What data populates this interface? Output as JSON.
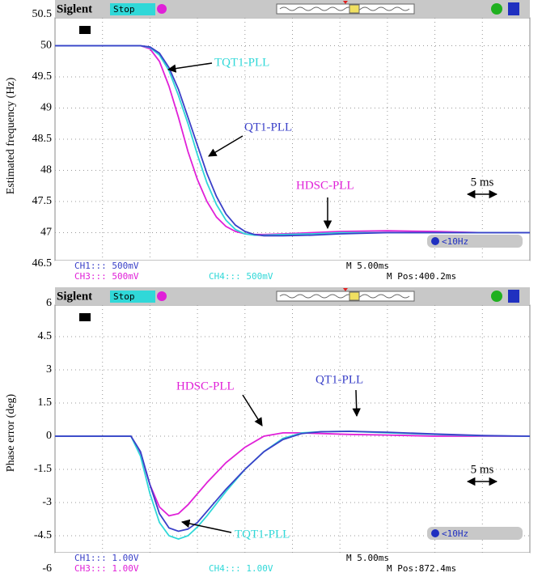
{
  "chart_data": [
    {
      "type": "line",
      "y_label": "Estimated frequency (Hz)",
      "x": [
        0,
        5,
        9,
        10,
        11,
        12,
        13,
        14,
        15,
        16,
        17,
        18,
        19,
        20,
        21,
        22,
        24,
        27,
        30,
        35,
        40,
        45,
        50
      ],
      "xlim": [
        0,
        50
      ],
      "ylim": [
        46.5,
        50.5
      ],
      "yticks": [
        50.5,
        50,
        49.5,
        49,
        48.5,
        48,
        47.5,
        47,
        46.5
      ],
      "series": [
        {
          "name": "HDSC-PLL",
          "color": "#e020d8",
          "values": [
            50,
            50,
            50,
            49.95,
            49.75,
            49.35,
            48.85,
            48.3,
            47.85,
            47.5,
            47.25,
            47.1,
            47.02,
            46.98,
            46.97,
            46.97,
            46.98,
            47.0,
            47.02,
            47.03,
            47.02,
            47.0,
            47.0
          ]
        },
        {
          "name": "TQT1-PLL",
          "color": "#30d8d8",
          "values": [
            50,
            50,
            50,
            49.97,
            49.85,
            49.6,
            49.2,
            48.75,
            48.25,
            47.8,
            47.45,
            47.2,
            47.05,
            46.98,
            46.96,
            46.96,
            46.97,
            46.98,
            47.0,
            47.0,
            47.0,
            47.0,
            47.0
          ]
        },
        {
          "name": "QT1-PLL",
          "color": "#3a40c8",
          "values": [
            50,
            50,
            50,
            49.98,
            49.88,
            49.65,
            49.3,
            48.85,
            48.4,
            47.95,
            47.58,
            47.3,
            47.12,
            47.02,
            46.97,
            46.95,
            46.95,
            46.96,
            46.98,
            47.0,
            47.0,
            47.0,
            47.0
          ]
        }
      ],
      "scope": {
        "brand": "Siglent",
        "status": "Stop",
        "channels": [
          {
            "text": "CH1::: 500mV",
            "color": "#3a40c8"
          },
          {
            "text": "CH3::: 500mV",
            "color": "#e020d8"
          },
          {
            "text": "CH4::: 500mV",
            "color": "#30d8d8"
          }
        ],
        "timebase": "M 5.00ms",
        "position": "M Pos:400.2ms",
        "trigger": "<10Hz",
        "scale_label": "5 ms"
      }
    },
    {
      "type": "line",
      "y_label": "Phase error (deg)",
      "x": [
        0,
        5,
        8,
        9,
        10,
        11,
        12,
        13,
        14,
        15,
        16,
        18,
        20,
        22,
        24,
        26,
        28,
        31,
        35,
        40,
        45,
        50
      ],
      "xlim": [
        0,
        50
      ],
      "ylim": [
        -6,
        6
      ],
      "yticks": [
        6,
        4.5,
        3,
        1.5,
        0,
        -1.5,
        -3,
        -4.5,
        -6
      ],
      "series": [
        {
          "name": "HDSC-PLL",
          "color": "#e020d8",
          "values": [
            0,
            0,
            0,
            -0.8,
            -2.2,
            -3.2,
            -3.6,
            -3.5,
            -3.1,
            -2.6,
            -2.1,
            -1.2,
            -0.5,
            0,
            0.15,
            0.15,
            0.12,
            0.08,
            0.05,
            0,
            0,
            0
          ]
        },
        {
          "name": "TQT1-PLL",
          "color": "#30d8d8",
          "values": [
            0,
            0,
            0,
            -0.9,
            -2.6,
            -3.9,
            -4.5,
            -4.65,
            -4.5,
            -4.1,
            -3.6,
            -2.5,
            -1.5,
            -0.7,
            -0.1,
            0.15,
            0.2,
            0.22,
            0.15,
            0.08,
            0.02,
            0
          ]
        },
        {
          "name": "QT1-PLL",
          "color": "#3a40c8",
          "values": [
            0,
            0,
            0,
            -0.7,
            -2.2,
            -3.5,
            -4.15,
            -4.3,
            -4.2,
            -3.9,
            -3.4,
            -2.4,
            -1.5,
            -0.7,
            -0.15,
            0.12,
            0.2,
            0.22,
            0.18,
            0.1,
            0.03,
            0
          ]
        }
      ],
      "scope": {
        "brand": "Siglent",
        "status": "Stop",
        "channels": [
          {
            "text": "CH1::: 1.00V",
            "color": "#3a40c8"
          },
          {
            "text": "CH3::: 1.00V",
            "color": "#e020d8"
          },
          {
            "text": "CH4::: 1.00V",
            "color": "#30d8d8"
          }
        ],
        "timebase": "M 5.00ms",
        "position": "M Pos:872.4ms",
        "trigger": "<10Hz",
        "scale_label": "5 ms"
      }
    }
  ]
}
